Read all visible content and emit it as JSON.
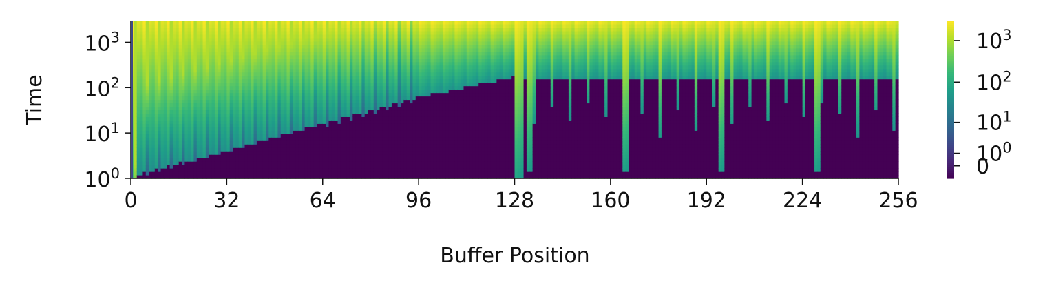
{
  "chart_data": {
    "type": "heatmap",
    "title": "",
    "xlabel": "Buffer Position",
    "ylabel": "Time",
    "x_range": [
      0,
      256
    ],
    "x_ticks": [
      0,
      32,
      64,
      96,
      128,
      160,
      192,
      224,
      256
    ],
    "y_scale": "log",
    "y_range": [
      1,
      3000
    ],
    "y_ticks": [
      {
        "value": 1,
        "label": "10",
        "exp": "0"
      },
      {
        "value": 10,
        "label": "10",
        "exp": "1"
      },
      {
        "value": 100,
        "label": "10",
        "exp": "2"
      },
      {
        "value": 1000,
        "label": "10",
        "exp": "3"
      }
    ],
    "colormap": "viridis",
    "colorbar": {
      "scale": "symlog",
      "range": [
        -1,
        3000
      ],
      "ticks": [
        {
          "value": 0,
          "label": "0",
          "exp": ""
        },
        {
          "value": 1,
          "label": "10",
          "exp": "0"
        },
        {
          "value": 10,
          "label": "10",
          "exp": "1"
        },
        {
          "value": 100,
          "label": "10",
          "exp": "2"
        },
        {
          "value": 1000,
          "label": "10",
          "exp": "3"
        }
      ]
    },
    "regions": [
      {
        "x_range": [
          0,
          96
        ],
        "pattern": "periodic write columns, boundary time rising from ~1 to ~60 (log)"
      },
      {
        "x_range": [
          96,
          128
        ],
        "pattern": "smooth boundary rising from ~60 to ~180"
      },
      {
        "x_range": [
          128,
          256
        ],
        "pattern": "periodic spikes with boundary near ~150"
      }
    ],
    "grid": false
  }
}
